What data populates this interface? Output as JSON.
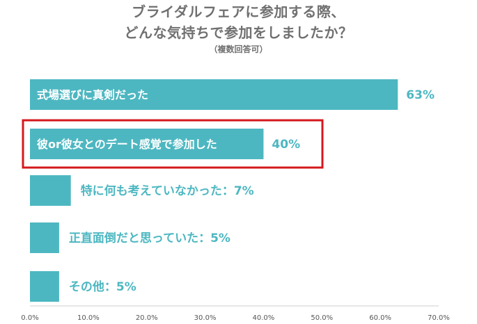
{
  "chart_data": {
    "type": "bar",
    "orientation": "horizontal",
    "title_lines": [
      "ブライダルフェアに参加する際、",
      "どんな気持ちで参加をしましたか？"
    ],
    "subtitle": "（複数回答可）",
    "categories": [
      "式場選びに真剣だった",
      "彼or彼女とのデート感覚で参加した",
      "特に何も考えていなかった",
      "正直面倒だと思っていた",
      "その他"
    ],
    "values": [
      63,
      40,
      7,
      5,
      5
    ],
    "value_labels": [
      "63%",
      "40%",
      "7%",
      "5%",
      "5%"
    ],
    "outside_labels": [
      "",
      "",
      "特に何も考えていなかった：7%",
      "正直面倒だと思っていた：5%",
      "その他：5%"
    ],
    "xlim": [
      0,
      70
    ],
    "x_ticks": [
      "0.0%",
      "10.0%",
      "20.0%",
      "30.0%",
      "40.0%",
      "50.0%",
      "60.0%",
      "70.0%"
    ],
    "highlighted_index": 1,
    "grid": false,
    "legend": "none",
    "colors": {
      "bar": "#4db7c1",
      "label_inside": "#ffffff",
      "label_outside": "#4db7c1",
      "highlight_border": "#d6181e",
      "title": "#707070",
      "tick": "#555555"
    }
  }
}
